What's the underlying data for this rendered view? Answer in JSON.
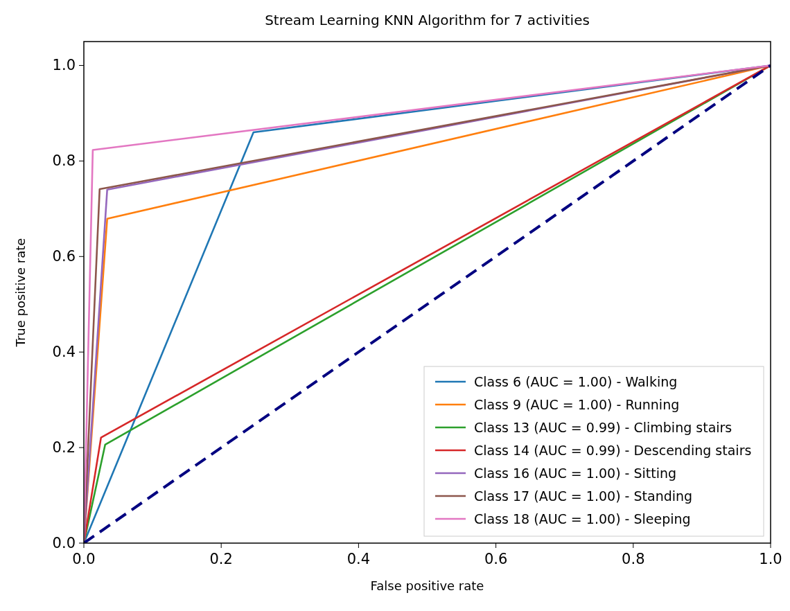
{
  "chart_data": {
    "type": "line",
    "title": "Stream Learning KNN Algorithm for 7 activities",
    "xlabel": "False positive rate",
    "ylabel": "True positive rate",
    "xlim": [
      0,
      1
    ],
    "ylim": [
      0,
      1.05
    ],
    "xticks": [
      {
        "value": 0,
        "label": "0.0"
      },
      0.2,
      0.4,
      0.6,
      0.8,
      {
        "value": 1,
        "label": "1.0"
      }
    ],
    "yticks": [
      {
        "value": 0,
        "label": "0.0"
      },
      0.2,
      0.4,
      0.6,
      0.8,
      {
        "value": 1,
        "label": "1.0"
      }
    ],
    "grid": false,
    "legend": "bottom right",
    "marker": "none",
    "series": [
      {
        "name": "Class 6 (AUC = 1.00) - Walking",
        "color": "#1f77b4",
        "x": [
          0,
          0.247,
          1
        ],
        "values": [
          0,
          0.86,
          1
        ]
      },
      {
        "name": "Class 9 (AUC = 1.00) - Running",
        "color": "#ff7f0e",
        "x": [
          0,
          0.034,
          1
        ],
        "values": [
          0,
          0.679,
          1
        ]
      },
      {
        "name": "Class 13 (AUC = 0.99) - Climbing stairs",
        "color": "#2ca02c",
        "x": [
          0,
          0.031,
          1
        ],
        "values": [
          0,
          0.206,
          1
        ]
      },
      {
        "name": "Class 14 (AUC = 0.99) - Descending stairs",
        "color": "#d62728",
        "x": [
          0,
          0.025,
          1
        ],
        "values": [
          0,
          0.221,
          1
        ]
      },
      {
        "name": "Class 16 (AUC = 1.00) - Sitting",
        "color": "#9467bd",
        "x": [
          0,
          0.034,
          1
        ],
        "values": [
          0,
          0.74,
          1
        ]
      },
      {
        "name": "Class 17 (AUC = 1.00) - Standing",
        "color": "#8c564b",
        "x": [
          0,
          0.023,
          1
        ],
        "values": [
          0,
          0.741,
          1
        ]
      },
      {
        "name": "Class 18 (AUC = 1.00) - Sleeping",
        "color": "#e377c2",
        "x": [
          0,
          0.013,
          1
        ],
        "values": [
          0,
          0.823,
          1
        ]
      },
      {
        "color": "#000080",
        "x": [
          0,
          1
        ],
        "values": [
          0,
          1
        ],
        "line_style": "dashed"
      }
    ]
  }
}
